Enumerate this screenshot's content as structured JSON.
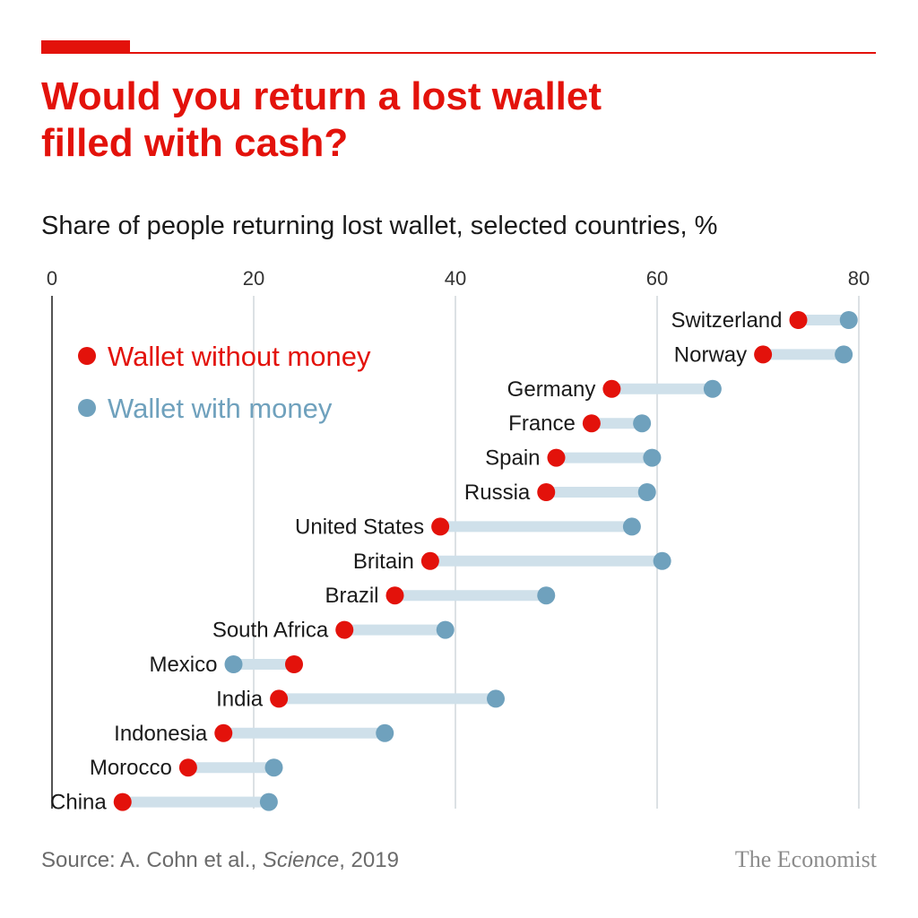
{
  "title_line1": "Would you return a lost wallet",
  "title_line2": "filled with cash?",
  "subtitle": "Share of people returning lost wallet, selected countries, %",
  "source": {
    "prefix": "Source: A. Cohn et al., ",
    "journal": "Science",
    "suffix": ", 2019"
  },
  "brand": "The Economist",
  "colors": {
    "accent": "#e3120b",
    "without_money": "#e3120b",
    "with_money": "#6fa1bd",
    "connector": "#cfe0ea",
    "gridline": "#b9c3c9"
  },
  "chart_data": {
    "type": "scatter",
    "xlim": [
      0,
      80
    ],
    "x_ticks": [
      0,
      20,
      40,
      60,
      80
    ],
    "legend_placement": "top-left",
    "categories": [
      "Switzerland",
      "Norway",
      "Germany",
      "France",
      "Spain",
      "Russia",
      "United States",
      "Britain",
      "Brazil",
      "South Africa",
      "Mexico",
      "India",
      "Indonesia",
      "Morocco",
      "China"
    ],
    "series": [
      {
        "name": "Wallet without money",
        "values": [
          74,
          70.5,
          55.5,
          53.5,
          50,
          49,
          38.5,
          37.5,
          34,
          29,
          24,
          22.5,
          17,
          13.5,
          7
        ]
      },
      {
        "name": "Wallet with money",
        "values": [
          79,
          78.5,
          65.5,
          58.5,
          59.5,
          59,
          57.5,
          60.5,
          49,
          39,
          18,
          44,
          33,
          22,
          21.5
        ]
      }
    ]
  }
}
